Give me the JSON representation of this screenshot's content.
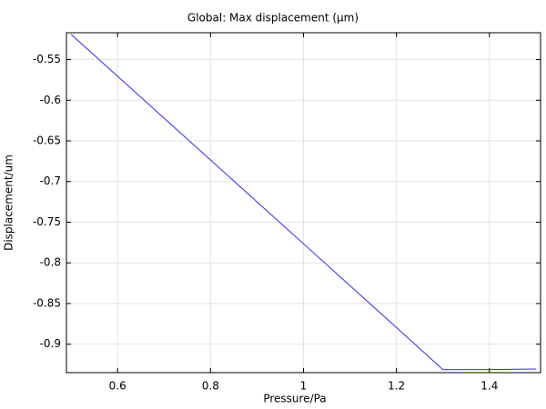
{
  "chart_data": {
    "type": "line",
    "title": "Global: Max displacement (µm)",
    "x_label": "Pressure/Pa",
    "y_label": "Displacement/um",
    "x": [
      0.5,
      0.6,
      0.7,
      0.8,
      0.9,
      1.0,
      1.1,
      1.2,
      1.3,
      1.4,
      1.5
    ],
    "values": [
      -0.519,
      -0.5705,
      -0.622,
      -0.6735,
      -0.725,
      -0.7765,
      -0.828,
      -0.8795,
      -0.9313,
      -0.9312,
      -0.9305
    ],
    "color": "#2a2aff",
    "xlim": [
      0.49,
      1.51
    ],
    "xticks": [
      0.6,
      0.8,
      1,
      1.2,
      1.4
    ],
    "ylim": [
      -0.935,
      -0.517
    ],
    "yticks": [
      -0.55,
      -0.6,
      -0.65,
      -0.7,
      -0.75,
      -0.8,
      -0.85,
      -0.9
    ],
    "grid": true
  }
}
